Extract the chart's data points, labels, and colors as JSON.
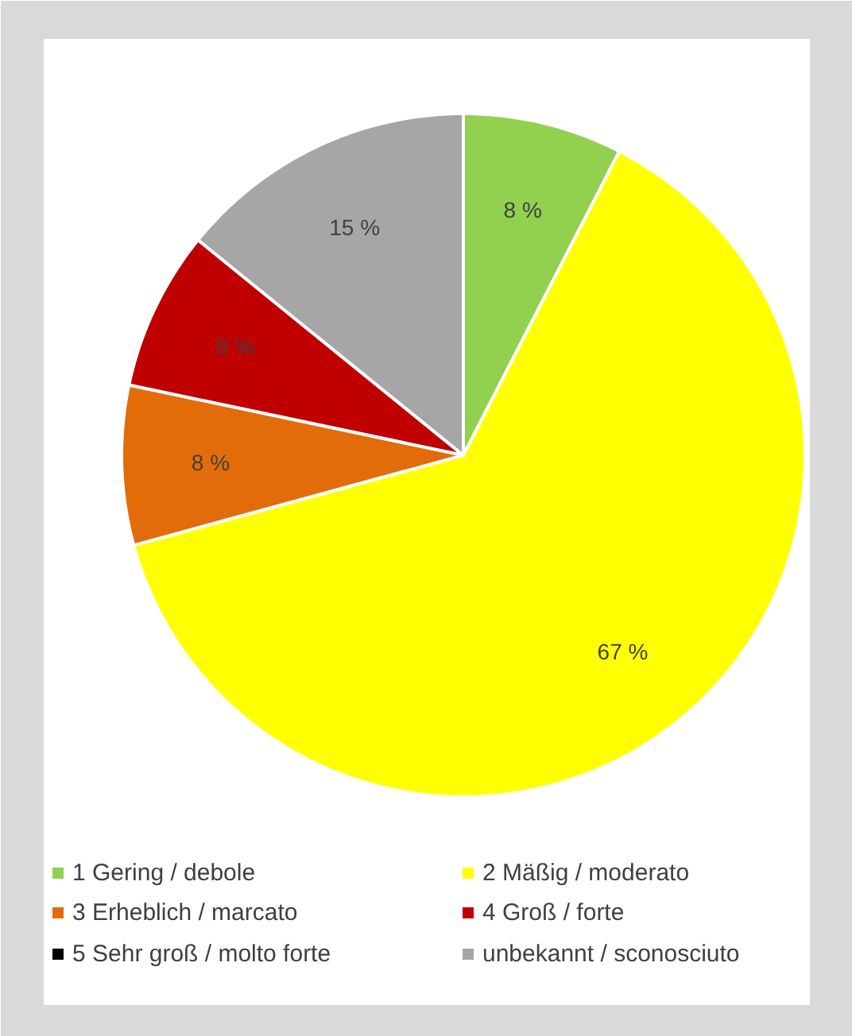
{
  "chart_data": {
    "type": "pie",
    "categories": [
      "1 Gering / debole",
      "2 Mäßig / moderato",
      "3 Erheblich / marcato",
      "4 Groß / forte",
      "5 Sehr groß / molto forte",
      "unbekannt / sconosciuto"
    ],
    "values": [
      8,
      67,
      8,
      8,
      0,
      15
    ],
    "colors": [
      "#92d050",
      "#ffff00",
      "#e36c0a",
      "#c00000",
      "#000000",
      "#a6a6a6"
    ],
    "value_labels": [
      "8 %",
      "67 %",
      "8 %",
      "8 %",
      null,
      "15 %"
    ],
    "legend": "bottom"
  }
}
